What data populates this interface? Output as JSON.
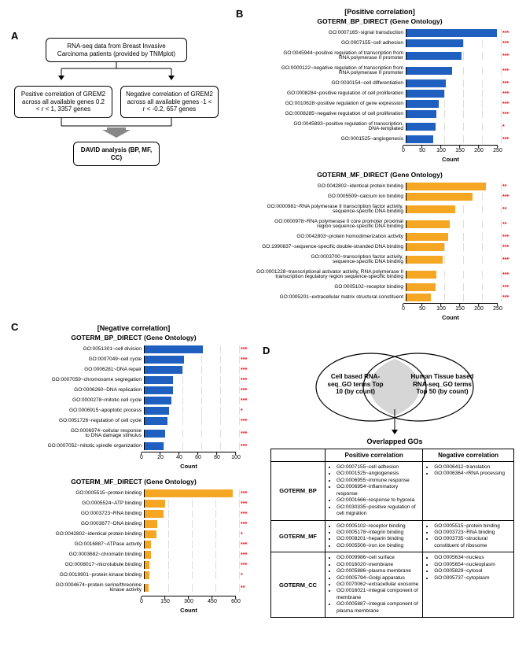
{
  "colors": {
    "blue": "#1f5fbf",
    "orange": "#f5a623",
    "red": "#ff0000",
    "grid": "#dddddd",
    "arrow_grey": "#888888"
  },
  "panel_a": {
    "label": "A",
    "box1": "RNA-seq data from Breast Invasive Carcinoma patients\n(provided by TNMplot)",
    "box2": "Positive correlation of GREM2\nacross all available genes\n0.2 < r < 1, 3357 genes",
    "box3": "Negative correlation of GREM2\nacross all available genes\n-1 < r < -0.2, 657 genes",
    "box4": "DAVID analysis\n(BP, MF, CC)"
  },
  "panel_b": {
    "label": "B",
    "header": "[Positive correlation]",
    "bp": {
      "title": "GOTERM_BP_DIRECT (Gene Ontology)",
      "xmax": 250,
      "ticks": [
        0,
        50,
        100,
        150,
        200,
        250
      ],
      "color": "#1f5fbf",
      "bars": [
        {
          "label": "GO:0007165~signal transduction",
          "value": 240,
          "sig": "***"
        },
        {
          "label": "GO:0007155~cell adhesion",
          "value": 150,
          "sig": "***"
        },
        {
          "label": "GO:0045944~positive regulation of transcription from\nRNA polymerase II promoter",
          "value": 145,
          "sig": "***"
        },
        {
          "label": "GO:0000122~negative regulation of transcription from\nRNA polymerase II promoter",
          "value": 120,
          "sig": "***"
        },
        {
          "label": "GO:0030154~cell differentiation",
          "value": 105,
          "sig": "***"
        },
        {
          "label": "GO:0008284~positive regulation of cell proliferation",
          "value": 100,
          "sig": "***"
        },
        {
          "label": "GO:0010628~positive regulation of gene expression",
          "value": 85,
          "sig": "***"
        },
        {
          "label": "GO:0008285~negative regulation of cell proliferation",
          "value": 80,
          "sig": "***"
        },
        {
          "label": "GO:0045893~positive regulation of transcription,\nDNA-templated",
          "value": 78,
          "sig": "*"
        },
        {
          "label": "GO:0001525~angiogenesis",
          "value": 70,
          "sig": "***"
        }
      ],
      "xlabel": "Count"
    },
    "mf": {
      "title": "GOTERM_MF_DIRECT (Gene Ontology)",
      "xmax": 250,
      "ticks": [
        0,
        50,
        100,
        150,
        200,
        250
      ],
      "color": "#f5a623",
      "bars": [
        {
          "label": "GO:0042802~identical protein binding",
          "value": 210,
          "sig": "**"
        },
        {
          "label": "GO:0005509~calcium ion binding",
          "value": 175,
          "sig": "***"
        },
        {
          "label": "GO:0000981~RNA polymerase II transcription factor activity,\nsequence-specific DNA binding",
          "value": 130,
          "sig": "**"
        },
        {
          "label": "GO:0000978~RNA polymerase II core promoter proximal\nregion sequence-specific DNA binding",
          "value": 115,
          "sig": "**"
        },
        {
          "label": "GO:0042803~protein homodimerization activity",
          "value": 110,
          "sig": "***"
        },
        {
          "label": "GO:1990837~sequence-specific double-stranded DNA binding",
          "value": 100,
          "sig": "***"
        },
        {
          "label": "GO:0003700~transcription factor activity,\nsequence-specific DNA binding",
          "value": 95,
          "sig": "***"
        },
        {
          "label": "GO:0001228~transcriptional activator activity, RNA polymerase II\ntranscription regulatory region sequence-specific binding",
          "value": 80,
          "sig": "***"
        },
        {
          "label": "GO:0005102~receptor binding",
          "value": 78,
          "sig": "***"
        },
        {
          "label": "GO:0005201~extracellular matrix structural constituent",
          "value": 65,
          "sig": "***"
        }
      ],
      "xlabel": "Count"
    }
  },
  "panel_c": {
    "label": "C",
    "header": "[Negative correlation]",
    "bp": {
      "title": "GOTERM_BP_DIRECT (Gene Ontology)",
      "xmax": 100,
      "ticks": [
        0,
        20,
        40,
        60,
        80,
        100
      ],
      "color": "#1f5fbf",
      "bars": [
        {
          "label": "GO:0051301~cell division",
          "value": 62,
          "sig": "***"
        },
        {
          "label": "GO:0007049~cell cycle",
          "value": 42,
          "sig": "***"
        },
        {
          "label": "GO:0006281~DNA repair",
          "value": 40,
          "sig": "***"
        },
        {
          "label": "GO:0007059~chromosome segregation",
          "value": 30,
          "sig": "***"
        },
        {
          "label": "GO:0006260~DNA replication",
          "value": 30,
          "sig": "***"
        },
        {
          "label": "GO:0000278~mitotic cell cycle",
          "value": 28,
          "sig": "***"
        },
        {
          "label": "GO:0006915~apoptotic process",
          "value": 26,
          "sig": "*"
        },
        {
          "label": "GO:0051726~regulation of cell cycle",
          "value": 24,
          "sig": "***"
        },
        {
          "label": "GO:0006974~cellular response\nto DNA damage stimulus",
          "value": 22,
          "sig": "***"
        },
        {
          "label": "GO:0007052~mitotic spindle organization",
          "value": 20,
          "sig": "***"
        }
      ],
      "xlabel": "Count"
    },
    "mf": {
      "title": "GOTERM_MF_DIRECT (Gene Ontology)",
      "xmax": 600,
      "ticks": [
        0,
        150,
        300,
        450,
        600
      ],
      "color": "#f5a623",
      "bars": [
        {
          "label": "GO:0005515~protein binding",
          "value": 560,
          "sig": "***"
        },
        {
          "label": "GO:0005524~ATP binding",
          "value": 130,
          "sig": "***"
        },
        {
          "label": "GO:0003723~RNA binding",
          "value": 120,
          "sig": "***"
        },
        {
          "label": "GO:0003677~DNA binding",
          "value": 80,
          "sig": "***"
        },
        {
          "label": "GO:0042802~identical protein binding",
          "value": 75,
          "sig": "*"
        },
        {
          "label": "GO:0016887~ATPase activity",
          "value": 40,
          "sig": "***"
        },
        {
          "label": "GO:0003682~chromatin binding",
          "value": 38,
          "sig": "***"
        },
        {
          "label": "GO:0008017~microtubule binding",
          "value": 30,
          "sig": "***"
        },
        {
          "label": "GO:0019901~protein kinase binding",
          "value": 28,
          "sig": "*"
        },
        {
          "label": "GO:0004674~protein serine/threonine\nkinase activity",
          "value": 25,
          "sig": "**"
        }
      ],
      "xlabel": "Count"
    }
  },
  "panel_d": {
    "label": "D",
    "venn_left": "Cell based\nRNA-seq_GO terms\nTop 10 (by count)",
    "venn_right": "Human Tissue based\nRNA-seq_GO terms\nTop 50 (by count)",
    "overlap_label": "Overlapped GOs",
    "col1": "Positive correlation",
    "col2": "Negative correlation",
    "rows": [
      {
        "head": "GOTERM_BP",
        "pos": [
          "GO:0007155~cell adhesion",
          "GO:0001525~angiogenesis",
          "GO:0006955~immune response",
          "GO:0006954~inflammatory response",
          "GO:0001666~response to hypoxia",
          "GO:0030335~positive regulation of cell migration"
        ],
        "neg": [
          "GO:0006412~translation",
          "GO:0006364~rRNA processing"
        ]
      },
      {
        "head": "GOTERM_MF",
        "pos": [
          "GO:0005102~receptor binding",
          "GO:0005178~integrin binding",
          "GO:0008201~heparin binding",
          "GO:0005506~iron ion binding"
        ],
        "neg": [
          "GO:0005515~protein binding",
          "GO:0003723~RNA binding",
          "GO:0003735~structural constituent of ribosome"
        ]
      },
      {
        "head": "GOTERM_CC",
        "pos": [
          "GO:0009986~cell surface",
          "GO:0016020~membrane",
          "GO:0005886~plasma membrane",
          "GO:0005794~Golgi apparatus",
          "GO:0070062~extracellular exosome",
          "GO:0016021~integral component of membrane",
          "GO:0005887~integral component of plasma membrane"
        ],
        "neg": [
          "GO:0005634~nucleus",
          "GO:0005654~nucleoplasm",
          "GO:0005829~cytosol",
          "GO:0005737~cytoplasm"
        ]
      }
    ]
  }
}
